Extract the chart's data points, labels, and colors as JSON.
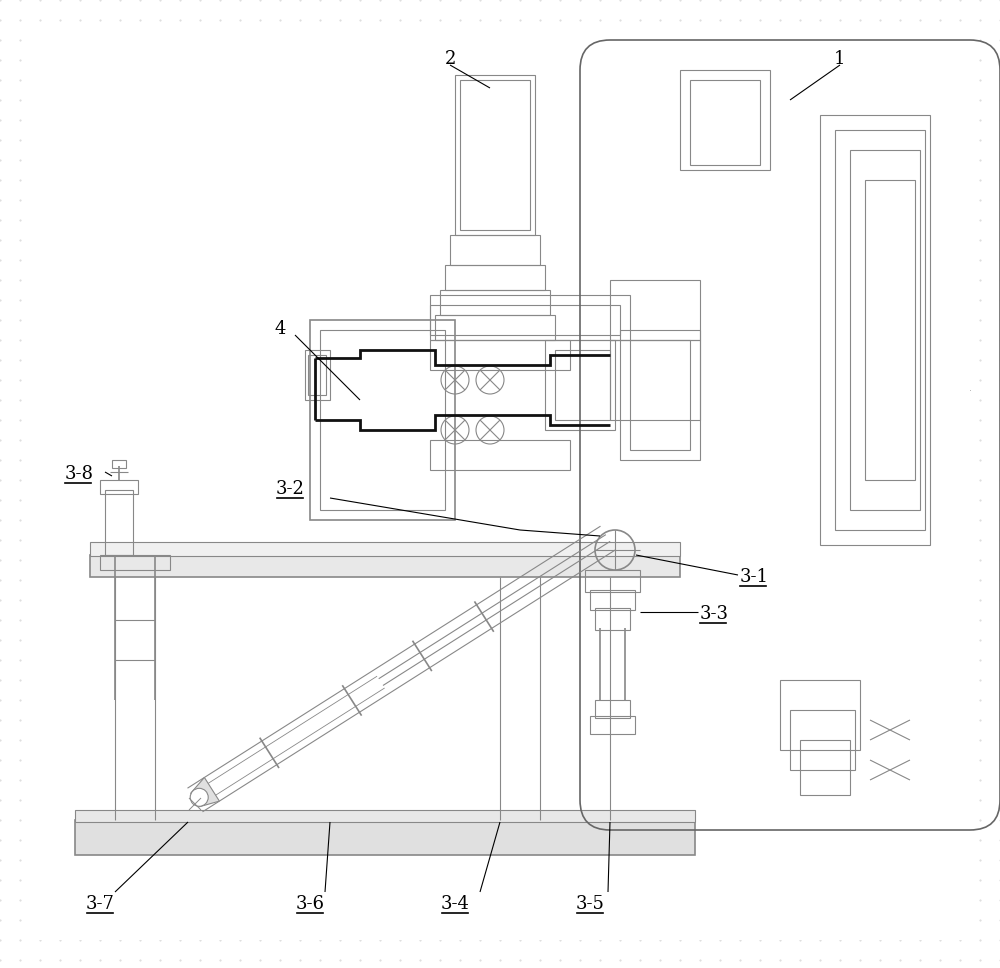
{
  "bg_color": "#ffffff",
  "bg_dot_color": "#d8d8d8",
  "line_color": "#888888",
  "dark_line": "#111111",
  "med_line": "#666666",
  "label_color": "#000000",
  "figsize": [
    10.0,
    9.68
  ],
  "dpi": 100
}
